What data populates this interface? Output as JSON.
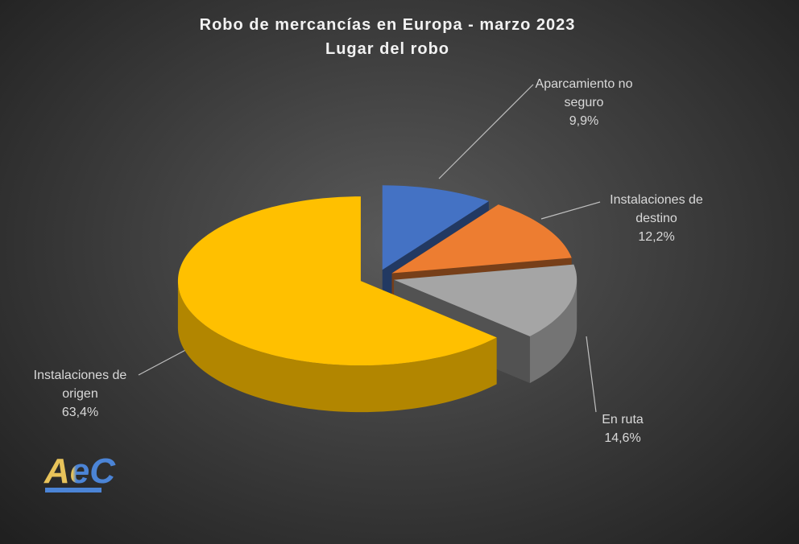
{
  "chart_data": {
    "type": "pie3d",
    "title": "Robo de mercancías en Europa - marzo 2023",
    "subtitle": "Lugar del robo",
    "categories": [
      "Aparcamiento no seguro",
      "Instalaciones de destino",
      "En ruta",
      "Instalaciones de origen"
    ],
    "values": [
      9.9,
      12.2,
      14.6,
      63.4
    ],
    "value_labels": [
      "9,9%",
      "12,2%",
      "14,6%",
      "63,4%"
    ],
    "colors": [
      "#4472c4",
      "#ed7d31",
      "#a5a5a5",
      "#ffc000"
    ]
  },
  "logo": "AeC"
}
